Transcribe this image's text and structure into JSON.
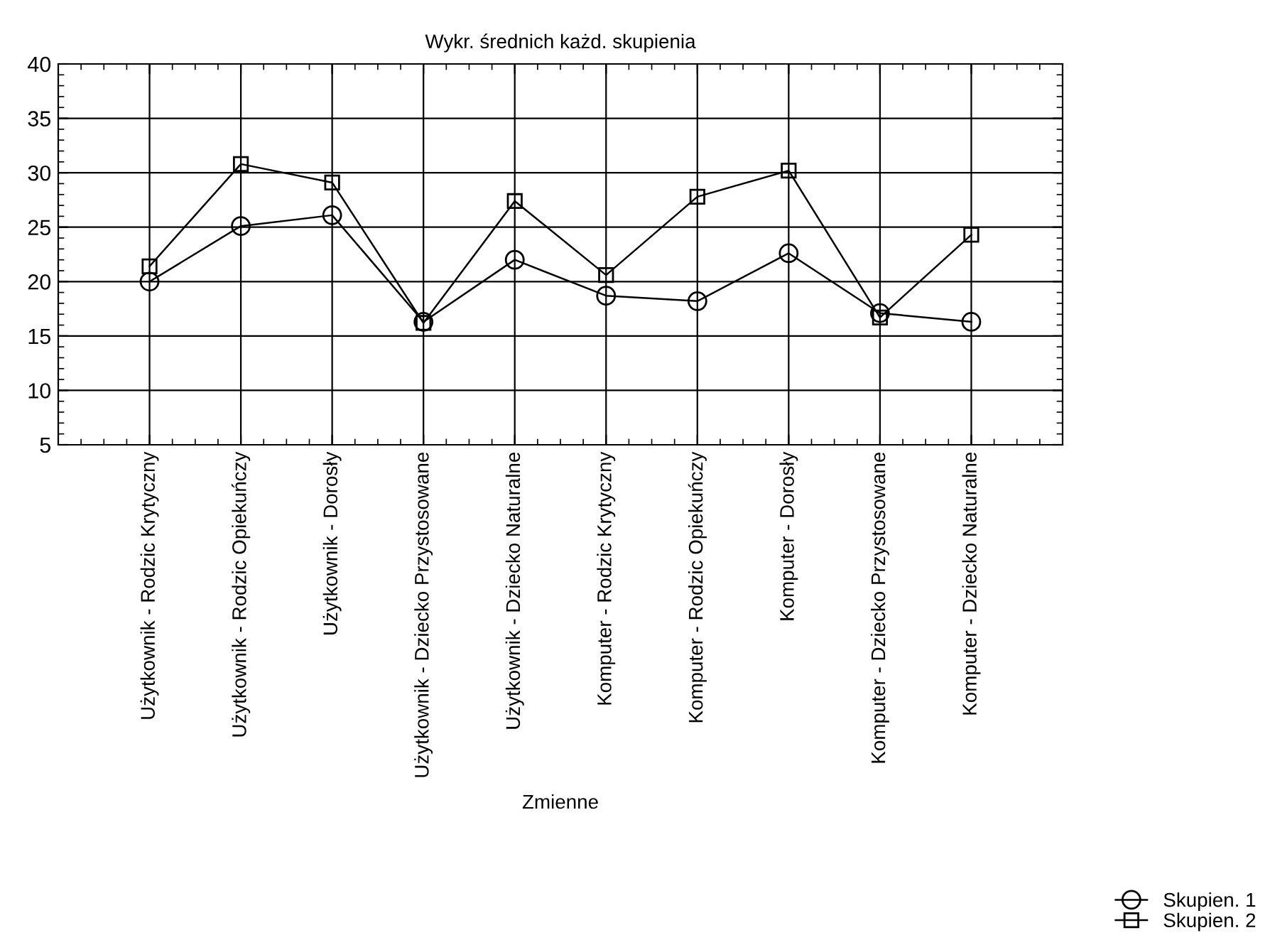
{
  "chart_data": {
    "type": "line",
    "title": "Wykr. średnich każd. skupienia",
    "xlabel": "Zmienne",
    "categories": [
      "Użytkownik - Rodzic Krytyczny",
      "Użytkownik - Rodzic Opiekuńczy",
      "Użytkownik - Dorosły",
      "Użytkownik - Dziecko Przystosowane",
      "Użytkownik - Dziecko Naturalne",
      "Komputer - Rodzic Krytyczny",
      "Komputer - Rodzic Opiekuńczy",
      "Komputer - Dorosły",
      "Komputer - Dziecko Przystosowane",
      "Komputer - Dziecko Naturalne"
    ],
    "series": [
      {
        "name": "Skupien. 1",
        "color": "#000000",
        "marker": "circle",
        "values": [
          20.0,
          25.1,
          26.1,
          16.3,
          22.0,
          18.7,
          18.2,
          22.6,
          17.1,
          16.3
        ]
      },
      {
        "name": "Skupien. 2",
        "color": "#000000",
        "marker": "square",
        "values": [
          21.4,
          30.8,
          29.1,
          16.2,
          27.4,
          20.6,
          27.8,
          30.2,
          16.7,
          24.3
        ]
      }
    ],
    "ylim": [
      5,
      40
    ],
    "yticks": [
      5,
      10,
      15,
      20,
      25,
      30,
      35,
      40
    ],
    "grid": true,
    "legend": "bottom right",
    "line_style": "solid"
  }
}
